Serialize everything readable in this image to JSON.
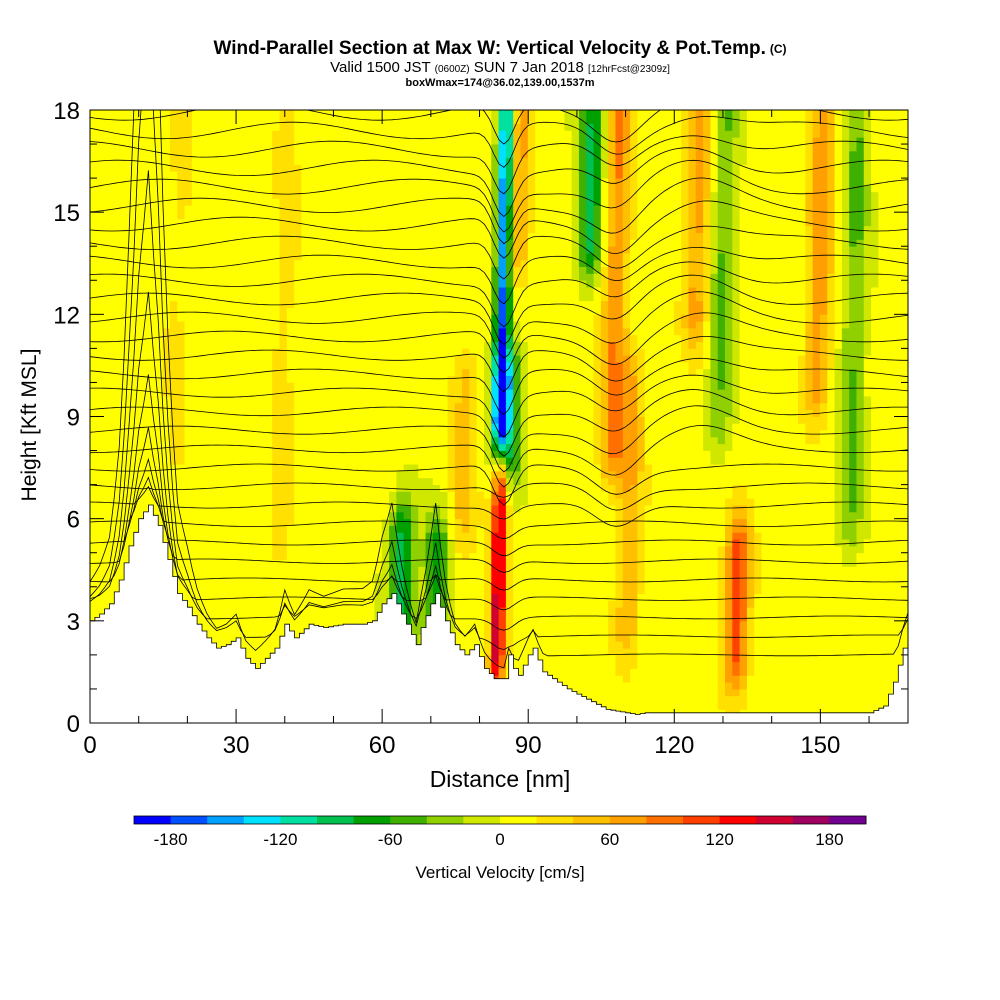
{
  "title": {
    "line1": "Wind-Parallel Section at Max W: Vertical Velocity & Pot.Temp.",
    "line1_mark": "(C)",
    "line2_a": "Valid 1500 JST",
    "line2_b": "(0600Z)",
    "line2_c": "SUN 7 Jan 2018",
    "line2_d": "[12hrFcst@2309z]",
    "line3": "boxWmax=174@36.02,139.00,1537m"
  },
  "chart_data": {
    "type": "heatmap",
    "xlabel": "Distance [nm]",
    "ylabel": "Height [Kft MSL]",
    "xlim": [
      0,
      168
    ],
    "ylim": [
      0,
      18
    ],
    "x_ticks": [
      0,
      30,
      60,
      90,
      120,
      150
    ],
    "y_ticks": [
      0,
      3,
      6,
      9,
      12,
      15,
      18
    ],
    "colorbar": {
      "label": "Vertical Velocity [cm/s]",
      "ticks": [
        -180,
        -120,
        -60,
        0,
        60,
        120,
        180
      ],
      "range": [
        -200,
        200
      ],
      "colors": [
        "#0000ff",
        "#0050ff",
        "#00a0ff",
        "#00e0ff",
        "#00e0a0",
        "#00c050",
        "#00a000",
        "#40b000",
        "#90d000",
        "#d0e800",
        "#ffff00",
        "#ffe000",
        "#ffc000",
        "#ffa000",
        "#ff7000",
        "#ff4000",
        "#ff0000",
        "#d00030",
        "#a00060",
        "#700090"
      ]
    },
    "vertical_velocity_features": [
      {
        "x": 85,
        "y_range": [
          9,
          18
        ],
        "w": -180
      },
      {
        "x": 86,
        "y_range": [
          8,
          10
        ],
        "w": -100
      },
      {
        "x": 84,
        "y_range": [
          2,
          7
        ],
        "w": 150
      },
      {
        "x": 88,
        "y_range": [
          14,
          18
        ],
        "w": 60
      },
      {
        "x": 64,
        "y_range": [
          2.5,
          5.5
        ],
        "w": -100
      },
      {
        "x": 71,
        "y_range": [
          3,
          5
        ],
        "w": -80
      },
      {
        "x": 103,
        "y_range": [
          14,
          18
        ],
        "w": -90
      },
      {
        "x": 108,
        "y_range": [
          8,
          18
        ],
        "w": 70
      },
      {
        "x": 111,
        "y_range": [
          3,
          10
        ],
        "w": 50
      },
      {
        "x": 125,
        "y_range": [
          12,
          18
        ],
        "w": 60
      },
      {
        "x": 130,
        "y_range": [
          9,
          18
        ],
        "w": -50
      },
      {
        "x": 133,
        "y_range": [
          2,
          5
        ],
        "w": 100
      },
      {
        "x": 150,
        "y_range": [
          10,
          18
        ],
        "w": 65
      },
      {
        "x": 157,
        "y_range": [
          6,
          18
        ],
        "w": -50
      },
      {
        "x": 18,
        "y_range": [
          5,
          18
        ],
        "w": 15
      },
      {
        "x": 40,
        "y_range": [
          5,
          18
        ],
        "w": 20
      },
      {
        "x": 77,
        "y_range": [
          6,
          10
        ],
        "w": 40
      }
    ],
    "terrain": [
      [
        0,
        3
      ],
      [
        2,
        3.2
      ],
      [
        4,
        3.5
      ],
      [
        6,
        4.2
      ],
      [
        8,
        5.2
      ],
      [
        10,
        6
      ],
      [
        12,
        6.4
      ],
      [
        14,
        5.8
      ],
      [
        16,
        4.8
      ],
      [
        18,
        3.8
      ],
      [
        20,
        3.4
      ],
      [
        22,
        2.9
      ],
      [
        24,
        2.5
      ],
      [
        26,
        2.2
      ],
      [
        28,
        2.3
      ],
      [
        30,
        2.5
      ],
      [
        32,
        1.9
      ],
      [
        34,
        1.6
      ],
      [
        36,
        1.9
      ],
      [
        38,
        2.2
      ],
      [
        40,
        2.9
      ],
      [
        42,
        2.5
      ],
      [
        45,
        2.9
      ],
      [
        48,
        2.8
      ],
      [
        52,
        2.9
      ],
      [
        56,
        2.9
      ],
      [
        58,
        3.0
      ],
      [
        60,
        3.5
      ],
      [
        62,
        3.8
      ],
      [
        64,
        3.2
      ],
      [
        66,
        2.6
      ],
      [
        67,
        2.3
      ],
      [
        68,
        2.8
      ],
      [
        70,
        3.5
      ],
      [
        71,
        3.8
      ],
      [
        73,
        3.0
      ],
      [
        75,
        2.3
      ],
      [
        77,
        2.0
      ],
      [
        79,
        2.3
      ],
      [
        81,
        1.6
      ],
      [
        83,
        1.3
      ],
      [
        85,
        1.3
      ],
      [
        86,
        2.0
      ],
      [
        87,
        1.6
      ],
      [
        88,
        1.4
      ],
      [
        90,
        2.0
      ],
      [
        91,
        2.2
      ],
      [
        93,
        1.5
      ],
      [
        95,
        1.3
      ],
      [
        98,
        1.0
      ],
      [
        102,
        0.7
      ],
      [
        106,
        0.4
      ],
      [
        110,
        0.3
      ],
      [
        112,
        0.25
      ],
      [
        114,
        0.3
      ],
      [
        125,
        0.3
      ],
      [
        135,
        0.3
      ],
      [
        145,
        0.3
      ],
      [
        155,
        0.3
      ],
      [
        160,
        0.3
      ],
      [
        163,
        0.5
      ],
      [
        165,
        1.2
      ],
      [
        167,
        2.2
      ],
      [
        168,
        2.5
      ]
    ]
  }
}
